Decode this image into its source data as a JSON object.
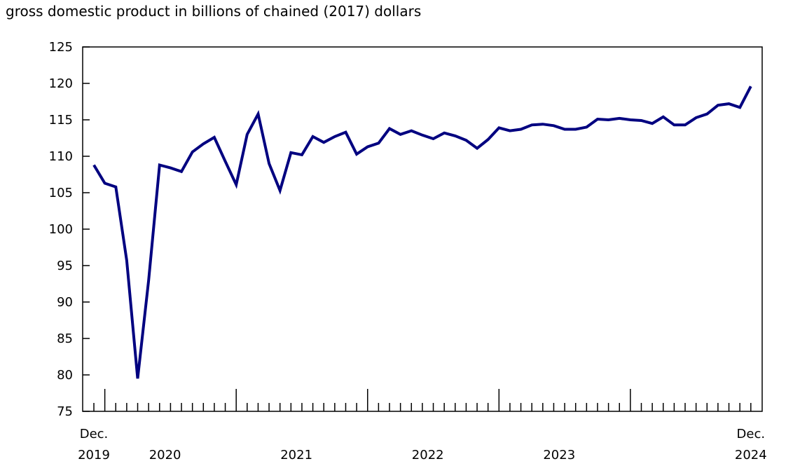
{
  "chart_data": {
    "type": "line",
    "title": "gross domestic product in billions of chained (2017) dollars",
    "xlabel": "",
    "ylabel": "",
    "ylim": [
      75,
      125
    ],
    "yticks": [
      75,
      80,
      85,
      90,
      95,
      100,
      105,
      110,
      115,
      120,
      125
    ],
    "x_start": "2019-12",
    "x_end": "2024-12",
    "xtick_labels": [
      {
        "month": "2019-12",
        "lines": [
          "Dec.",
          "2019"
        ]
      },
      {
        "month": "2020-07",
        "lines": [
          "",
          "2020"
        ]
      },
      {
        "month": "2021-07",
        "lines": [
          "",
          "2021"
        ]
      },
      {
        "month": "2022-07",
        "lines": [
          "",
          "2022"
        ]
      },
      {
        "month": "2023-07",
        "lines": [
          "",
          "2023"
        ]
      },
      {
        "month": "2024-12",
        "lines": [
          "Dec.",
          "2024"
        ]
      }
    ],
    "grid": false,
    "color": "#000080",
    "series": [
      {
        "values": [
          108.8,
          106.3,
          105.8,
          95.7,
          79.5,
          93.0,
          108.8,
          108.4,
          107.9,
          110.6,
          111.7,
          112.6,
          109.3,
          106.1,
          113.0,
          115.8,
          109.0,
          105.3,
          110.5,
          110.2,
          112.7,
          111.9,
          112.7,
          113.3,
          110.3,
          111.3,
          111.8,
          113.8,
          113.0,
          113.5,
          112.9,
          112.4,
          113.2,
          112.8,
          112.2,
          111.1,
          112.3,
          113.9,
          113.5,
          113.7,
          114.3,
          114.4,
          114.2,
          113.7,
          113.7,
          114.0,
          115.1,
          115.0,
          115.2,
          115.0,
          114.9,
          114.5,
          115.4,
          114.3,
          114.3,
          115.3,
          115.8,
          117.0,
          117.2,
          116.7,
          119.6
        ]
      }
    ]
  }
}
